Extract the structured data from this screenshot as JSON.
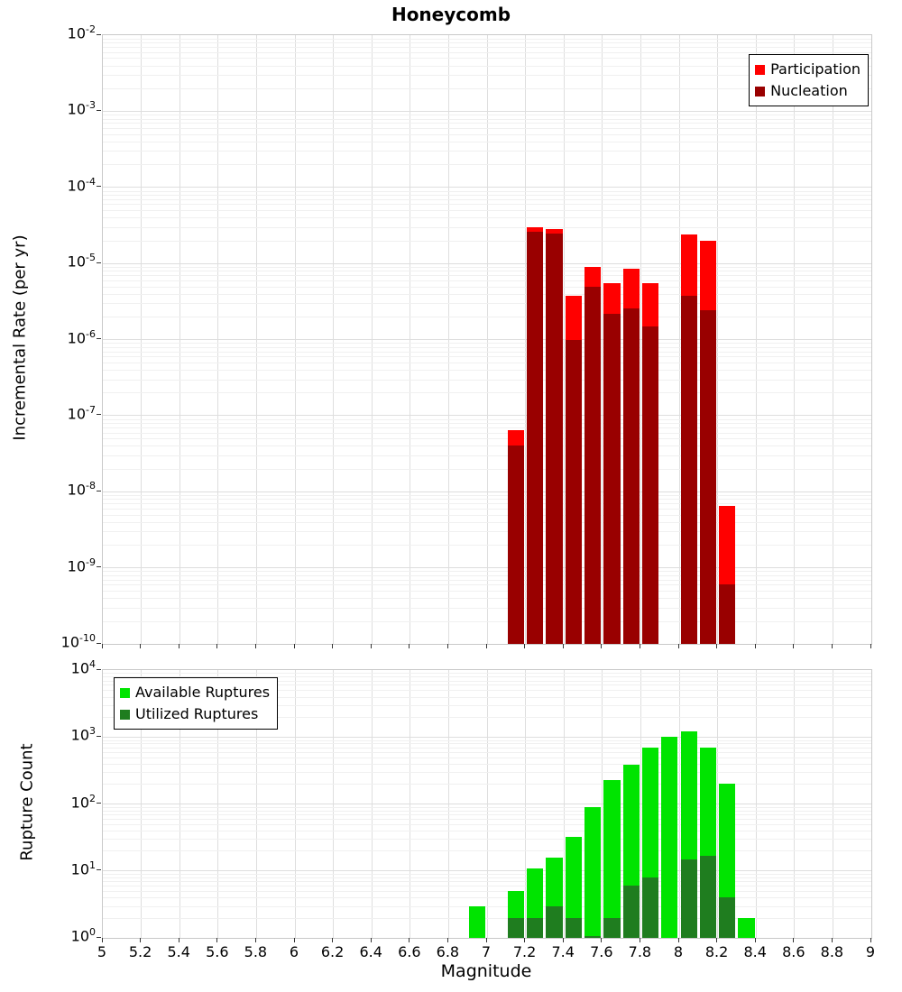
{
  "title": "Honeycomb",
  "chart_data": [
    {
      "type": "bar",
      "title": "Honeycomb",
      "xlabel": "",
      "ylabel": "Incremental Rate (per yr)",
      "xlim": [
        5,
        9
      ],
      "ylim": [
        1e-10,
        0.01
      ],
      "y_scale": "log",
      "grid": true,
      "legend_position": "top-right",
      "bin_width": 0.1,
      "x": [
        7.1,
        7.2,
        7.3,
        7.4,
        7.5,
        7.6,
        7.7,
        7.8,
        8.0,
        8.1,
        8.2
      ],
      "series": [
        {
          "name": "Participation",
          "color": "#ff0000",
          "values": [
            6.5e-08,
            3e-05,
            2.8e-05,
            3.8e-06,
            9e-06,
            5.5e-06,
            8.5e-06,
            5.5e-06,
            2.4e-05,
            2e-05,
            6.5e-09
          ]
        },
        {
          "name": "Nucleation",
          "color": "#990000",
          "values": [
            4e-08,
            2.6e-05,
            2.5e-05,
            1e-06,
            5e-06,
            2.2e-06,
            2.6e-06,
            1.5e-06,
            3.8e-06,
            2.4e-06,
            6e-10
          ]
        }
      ],
      "y_tick_exponents": [
        "-2",
        "-3",
        "-4",
        "-5",
        "-6",
        "-7",
        "-8",
        "-9",
        "-10"
      ],
      "x_tick_labels": [
        "5",
        "5.2",
        "5.4",
        "5.6",
        "5.8",
        "6",
        "6.2",
        "6.4",
        "6.6",
        "6.8",
        "7",
        "7.2",
        "7.4",
        "7.6",
        "7.8",
        "8",
        "8.2",
        "8.4",
        "8.6",
        "8.8",
        "9"
      ],
      "show_x_tick_labels": false
    },
    {
      "type": "bar",
      "title": "",
      "xlabel": "Magnitude",
      "ylabel": "Rupture Count",
      "xlim": [
        5,
        9
      ],
      "ylim": [
        1,
        10000
      ],
      "y_scale": "log",
      "grid": true,
      "legend_position": "top-left",
      "bin_width": 0.1,
      "x": [
        6.9,
        7.1,
        7.2,
        7.3,
        7.4,
        7.5,
        7.6,
        7.7,
        7.8,
        7.9,
        8.0,
        8.1,
        8.2,
        8.3
      ],
      "series": [
        {
          "name": "Available Ruptures",
          "color": "#00e400",
          "values": [
            3,
            5,
            11,
            16,
            32,
            90,
            230,
            380,
            700,
            1000,
            1200,
            700,
            200,
            2
          ]
        },
        {
          "name": "Utilized Ruptures",
          "color": "#1f7d1f",
          "values": [
            null,
            2,
            2,
            3,
            2,
            1,
            2,
            6,
            8,
            null,
            15,
            17,
            4,
            null
          ]
        }
      ],
      "y_tick_exponents": [
        "4",
        "3",
        "2",
        "1",
        "0"
      ],
      "x_tick_labels": [
        "5",
        "5.2",
        "5.4",
        "5.6",
        "5.8",
        "6",
        "6.2",
        "6.4",
        "6.6",
        "6.8",
        "7",
        "7.2",
        "7.4",
        "7.6",
        "7.8",
        "8",
        "8.2",
        "8.4",
        "8.6",
        "8.8",
        "9"
      ],
      "show_x_tick_labels": true
    }
  ]
}
